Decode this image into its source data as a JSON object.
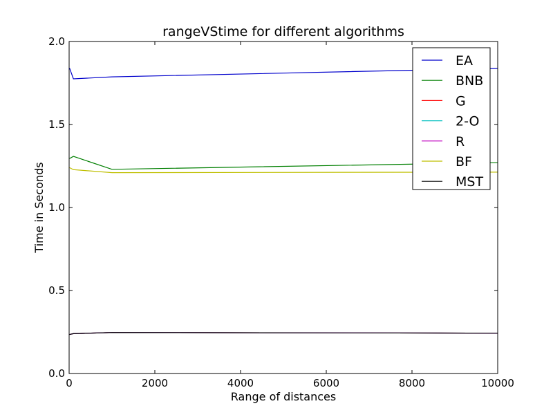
{
  "chart_data": {
    "type": "line",
    "title": "rangeVStime for different algorithms",
    "xlabel": "Range of distances",
    "ylabel": "Time in Seconds",
    "xlim": [
      0,
      10000
    ],
    "ylim": [
      0.0,
      2.0
    ],
    "x_ticks": [
      0,
      2000,
      4000,
      6000,
      8000,
      10000
    ],
    "x_tick_labels": [
      "0",
      "2000",
      "4000",
      "6000",
      "8000",
      "10000"
    ],
    "y_ticks": [
      0.0,
      0.5,
      1.0,
      1.5,
      2.0
    ],
    "y_tick_labels": [
      "0.0",
      "0.5",
      "1.0",
      "1.5",
      "2.0"
    ],
    "grid": false,
    "legend_position": "top-right",
    "x": [
      10,
      100,
      1000,
      10000
    ],
    "series": [
      {
        "name": "EA",
        "color": "#0000cc",
        "values": [
          1.84,
          1.775,
          1.787,
          1.838
        ]
      },
      {
        "name": "BNB",
        "color": "#007f00",
        "values": [
          1.295,
          1.308,
          1.23,
          1.27
        ]
      },
      {
        "name": "G",
        "color": "#ff0000",
        "values": [
          0.235,
          0.24,
          0.247,
          0.243
        ]
      },
      {
        "name": "2-O",
        "color": "#00bfbf",
        "values": [
          0.235,
          0.24,
          0.247,
          0.243
        ]
      },
      {
        "name": "R",
        "color": "#bf00bf",
        "values": [
          0.235,
          0.24,
          0.247,
          0.243
        ]
      },
      {
        "name": "BF",
        "color": "#bfbf00",
        "values": [
          1.24,
          1.228,
          1.21,
          1.213
        ]
      },
      {
        "name": "MST",
        "color": "#000000",
        "values": [
          0.235,
          0.24,
          0.247,
          0.243
        ]
      }
    ]
  }
}
